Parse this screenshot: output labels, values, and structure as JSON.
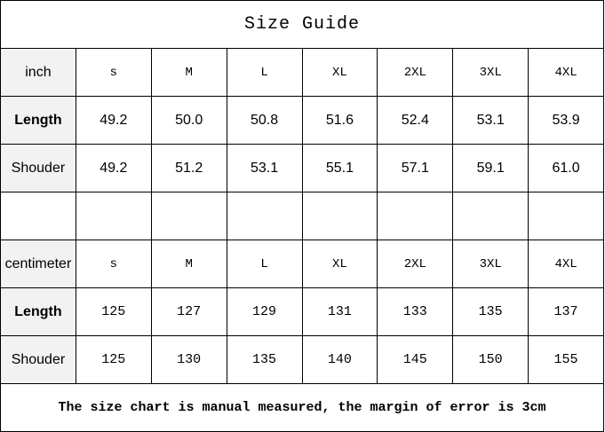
{
  "title": "Size Guide",
  "inch": {
    "label": "inch",
    "sizes": [
      "s",
      "M",
      "L",
      "XL",
      "2XL",
      "3XL",
      "4XL"
    ],
    "rows": [
      {
        "label": "Length",
        "values": [
          "49.2",
          "50.0",
          "50.8",
          "51.6",
          "52.4",
          "53.1",
          "53.9"
        ]
      },
      {
        "label": "Shouder",
        "values": [
          "49.2",
          "51.2",
          "53.1",
          "55.1",
          "57.1",
          "59.1",
          "61.0"
        ]
      }
    ]
  },
  "centimeter": {
    "label": "centimeter",
    "sizes": [
      "s",
      "M",
      "L",
      "XL",
      "2XL",
      "3XL",
      "4XL"
    ],
    "rows": [
      {
        "label": "Length",
        "values": [
          "125",
          "127",
          "129",
          "131",
          "133",
          "135",
          "137"
        ]
      },
      {
        "label": "Shouder",
        "values": [
          "125",
          "130",
          "135",
          "140",
          "145",
          "150",
          "155"
        ]
      }
    ]
  },
  "footer": "The size chart is manual measured, the margin of error is 3cm"
}
